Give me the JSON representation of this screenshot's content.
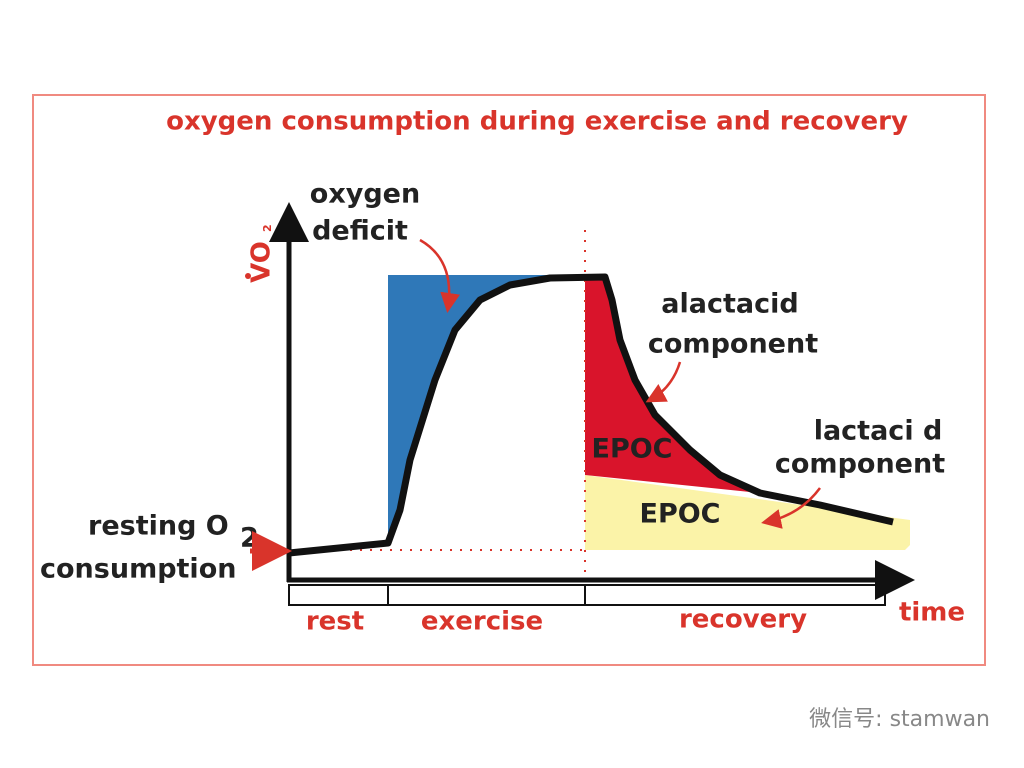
{
  "title": "oxygen consumption during exercise and recovery",
  "axes": {
    "y_label": "VO",
    "y_label_subscript": "2",
    "x_label": "time"
  },
  "annotations": {
    "oxygen_deficit": [
      "oxygen",
      "deficit"
    ],
    "alactacid_component": [
      "alactacid",
      "component"
    ],
    "lactacid_component": [
      "lactaci d",
      "component"
    ],
    "epoc_upper": "EPOC",
    "epoc_lower": "EPOC",
    "resting": {
      "line1": "resting O",
      "subscript": "2",
      "line2": "consumption"
    }
  },
  "phases": [
    "rest",
    "exercise",
    "recovery"
  ],
  "watermark": "微信号: stamwan"
}
